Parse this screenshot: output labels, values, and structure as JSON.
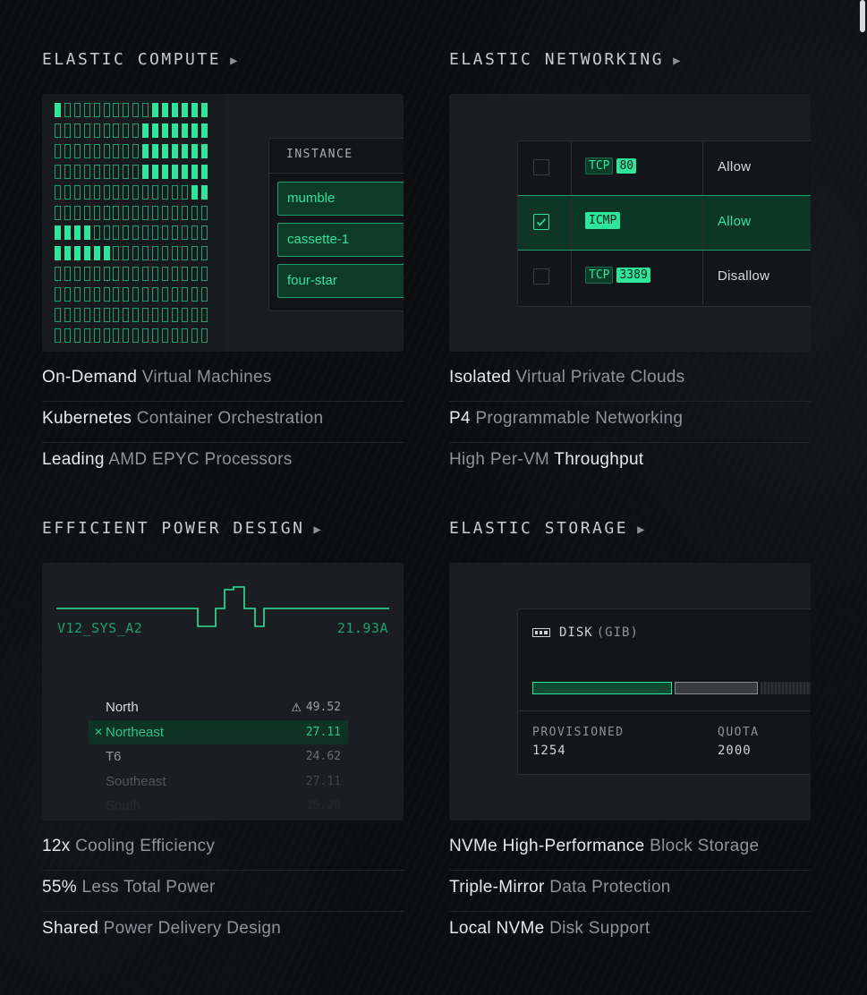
{
  "sections": {
    "compute": {
      "title": "ELASTIC COMPUTE",
      "instance_header": "INSTANCE",
      "instances": [
        "mumble",
        "cassette-1",
        "four-star"
      ],
      "grid": {
        "columns": 16,
        "rows": 12,
        "filled_per_row": [
          [
            "r",
            1,
            6
          ],
          [
            "r",
            7,
            0
          ],
          [
            "r",
            7,
            0
          ],
          [
            "r",
            7,
            0
          ],
          [
            "r",
            2,
            0
          ],
          [
            "none"
          ],
          [
            "l",
            4
          ],
          [
            "l",
            6
          ],
          [
            "none"
          ],
          [
            "none"
          ],
          [
            "none"
          ],
          [
            "none"
          ]
        ]
      },
      "features": [
        {
          "bold": "On-Demand",
          "rest": " Virtual Machines"
        },
        {
          "bold": "Kubernetes",
          "rest": " Container Orchestration"
        },
        {
          "bold": "Leading",
          "rest": " AMD EPYC Processors"
        }
      ]
    },
    "networking": {
      "title": "ELASTIC NETWORKING",
      "rules": [
        {
          "checked": false,
          "protocol": "TCP",
          "port": "80",
          "action": "Allow"
        },
        {
          "checked": true,
          "protocol": "ICMP",
          "port": "",
          "action": "Allow"
        },
        {
          "checked": false,
          "protocol": "TCP",
          "port": "3389",
          "action": "Disallow"
        }
      ],
      "features": [
        {
          "bold": "Isolated",
          "rest": " Virtual Private Clouds"
        },
        {
          "bold": "P4",
          "rest": " Programmable Networking"
        },
        {
          "pre": "High Per-VM ",
          "bold": "Throughput",
          "rest": ""
        }
      ]
    },
    "power": {
      "title": "EFFICIENT POWER DESIGN",
      "signal_name": "V12_SYS_A2",
      "signal_value": "21.93A",
      "regions": [
        {
          "name": "North",
          "value": "49.52",
          "warning": true,
          "selected": false
        },
        {
          "name": "Northeast",
          "value": "27.11",
          "warning": false,
          "selected": true
        },
        {
          "name": "T6",
          "value": "24.62",
          "warning": false,
          "selected": false
        },
        {
          "name": "Southeast",
          "value": "27.11",
          "warning": false,
          "selected": false
        },
        {
          "name": "South",
          "value": "25.20",
          "warning": false,
          "selected": false
        }
      ],
      "features": [
        {
          "bold": "12x",
          "rest": " Cooling Efficiency"
        },
        {
          "bold": "55%",
          "rest": " Less Total Power"
        },
        {
          "bold": "Shared",
          "rest": " Power Delivery Design"
        }
      ]
    },
    "storage": {
      "title": "ELASTIC STORAGE",
      "disk_label": "DISK",
      "disk_unit": "(GIB)",
      "provisioned_label": "PROVISIONED",
      "provisioned_value": "1254",
      "quota_label": "QUOTA",
      "quota_value": "2000",
      "provisioned_gib": 1254,
      "quota_gib": 2000,
      "features": [
        {
          "bold": "NVMe High-Performance",
          "rest": " Block Storage"
        },
        {
          "bold": "Triple-Mirror",
          "rest": " Data Protection"
        },
        {
          "bold": "Local NVMe",
          "rest": " Disk Support"
        }
      ]
    }
  },
  "colors": {
    "accent": "#2ee59b",
    "accent_dim": "#1f9f6a",
    "background": "#0b0d0f",
    "card": "#1b1e20"
  },
  "icons": {
    "title_arrow": "play-arrow-icon",
    "disk": "disk-icon",
    "warning": "warning-icon",
    "check": "check-icon",
    "close": "close-icon"
  }
}
